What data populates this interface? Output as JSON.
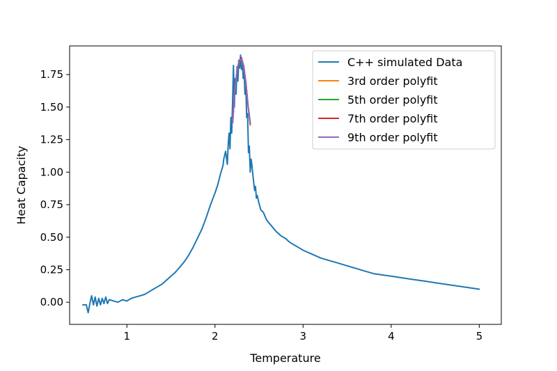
{
  "chart_data": {
    "type": "line",
    "title": "",
    "xlabel": "Temperature",
    "ylabel": "Heat Capacity",
    "xlim": [
      0.35,
      5.25
    ],
    "ylim": [
      -0.17,
      1.97
    ],
    "grid": false,
    "legend_position": "top-right",
    "x_ticks": [
      1,
      2,
      3,
      4,
      5
    ],
    "x_tick_labels": [
      "1",
      "2",
      "3",
      "4",
      "5"
    ],
    "y_ticks": [
      0.0,
      0.25,
      0.5,
      0.75,
      1.0,
      1.25,
      1.5,
      1.75
    ],
    "y_tick_labels": [
      "0.00",
      "0.25",
      "0.50",
      "0.75",
      "1.00",
      "1.25",
      "1.50",
      "1.75"
    ],
    "series": [
      {
        "name": "C++ simulated Data",
        "color": "#1f77b4",
        "x": [
          0.5,
          0.54,
          0.56,
          0.58,
          0.6,
          0.62,
          0.64,
          0.66,
          0.68,
          0.7,
          0.72,
          0.74,
          0.76,
          0.78,
          0.8,
          0.85,
          0.9,
          0.95,
          1.0,
          1.05,
          1.1,
          1.15,
          1.2,
          1.25,
          1.3,
          1.35,
          1.4,
          1.45,
          1.5,
          1.55,
          1.6,
          1.65,
          1.7,
          1.75,
          1.8,
          1.85,
          1.9,
          1.95,
          2.0,
          2.03,
          2.06,
          2.09,
          2.1,
          2.12,
          2.14,
          2.15,
          2.16,
          2.17,
          2.18,
          2.19,
          2.2,
          2.21,
          2.22,
          2.23,
          2.24,
          2.25,
          2.26,
          2.27,
          2.28,
          2.29,
          2.3,
          2.31,
          2.32,
          2.33,
          2.34,
          2.35,
          2.36,
          2.37,
          2.38,
          2.39,
          2.4,
          2.41,
          2.42,
          2.43,
          2.44,
          2.45,
          2.46,
          2.47,
          2.48,
          2.5,
          2.52,
          2.55,
          2.58,
          2.6,
          2.65,
          2.7,
          2.75,
          2.8,
          2.85,
          2.9,
          2.95,
          3.0,
          3.1,
          3.2,
          3.3,
          3.4,
          3.5,
          3.6,
          3.7,
          3.8,
          3.9,
          4.0,
          4.2,
          4.4,
          4.6,
          4.8,
          5.0
        ],
        "values": [
          -0.02,
          -0.02,
          -0.08,
          -0.01,
          0.05,
          -0.02,
          0.04,
          -0.03,
          0.03,
          -0.02,
          0.03,
          -0.01,
          0.04,
          -0.01,
          0.02,
          0.01,
          0.0,
          0.02,
          0.01,
          0.03,
          0.04,
          0.05,
          0.06,
          0.08,
          0.1,
          0.12,
          0.14,
          0.17,
          0.2,
          0.23,
          0.27,
          0.31,
          0.36,
          0.42,
          0.49,
          0.56,
          0.65,
          0.75,
          0.84,
          0.9,
          0.98,
          1.05,
          1.1,
          1.16,
          1.06,
          1.22,
          1.3,
          1.18,
          1.42,
          1.3,
          1.55,
          1.82,
          1.5,
          1.72,
          1.6,
          1.81,
          1.7,
          1.86,
          1.8,
          1.9,
          1.79,
          1.85,
          1.72,
          1.8,
          1.6,
          1.65,
          1.42,
          1.45,
          1.15,
          1.2,
          1.0,
          1.1,
          1.05,
          0.98,
          0.92,
          0.86,
          0.89,
          0.8,
          0.82,
          0.76,
          0.71,
          0.69,
          0.64,
          0.62,
          0.58,
          0.54,
          0.51,
          0.49,
          0.46,
          0.44,
          0.42,
          0.4,
          0.37,
          0.34,
          0.32,
          0.3,
          0.28,
          0.26,
          0.24,
          0.22,
          0.21,
          0.2,
          0.18,
          0.16,
          0.14,
          0.12,
          0.1
        ]
      },
      {
        "name": "3rd order polyfit",
        "color": "#ff7f0e",
        "x": [
          2.2,
          2.225,
          2.25,
          2.275,
          2.3,
          2.325,
          2.35,
          2.375,
          2.4
        ],
        "values": [
          1.39,
          1.62,
          1.78,
          1.86,
          1.87,
          1.81,
          1.69,
          1.52,
          1.36
        ]
      },
      {
        "name": "5th order polyfit",
        "color": "#2ca02c",
        "x": [
          2.2,
          2.225,
          2.25,
          2.275,
          2.3,
          2.325,
          2.35,
          2.375,
          2.4
        ],
        "values": [
          1.38,
          1.61,
          1.78,
          1.86,
          1.87,
          1.82,
          1.69,
          1.51,
          1.37
        ]
      },
      {
        "name": "7th order polyfit",
        "color": "#d62728",
        "x": [
          2.2,
          2.225,
          2.25,
          2.275,
          2.3,
          2.325,
          2.35,
          2.375,
          2.4
        ],
        "values": [
          1.38,
          1.62,
          1.77,
          1.85,
          1.88,
          1.82,
          1.68,
          1.51,
          1.38
        ]
      },
      {
        "name": "9th order polyfit",
        "color": "#9467bd",
        "x": [
          2.2,
          2.225,
          2.25,
          2.275,
          2.3,
          2.325,
          2.35,
          2.375,
          2.4
        ],
        "values": [
          1.38,
          1.62,
          1.78,
          1.85,
          1.87,
          1.82,
          1.69,
          1.51,
          1.38
        ]
      }
    ]
  }
}
